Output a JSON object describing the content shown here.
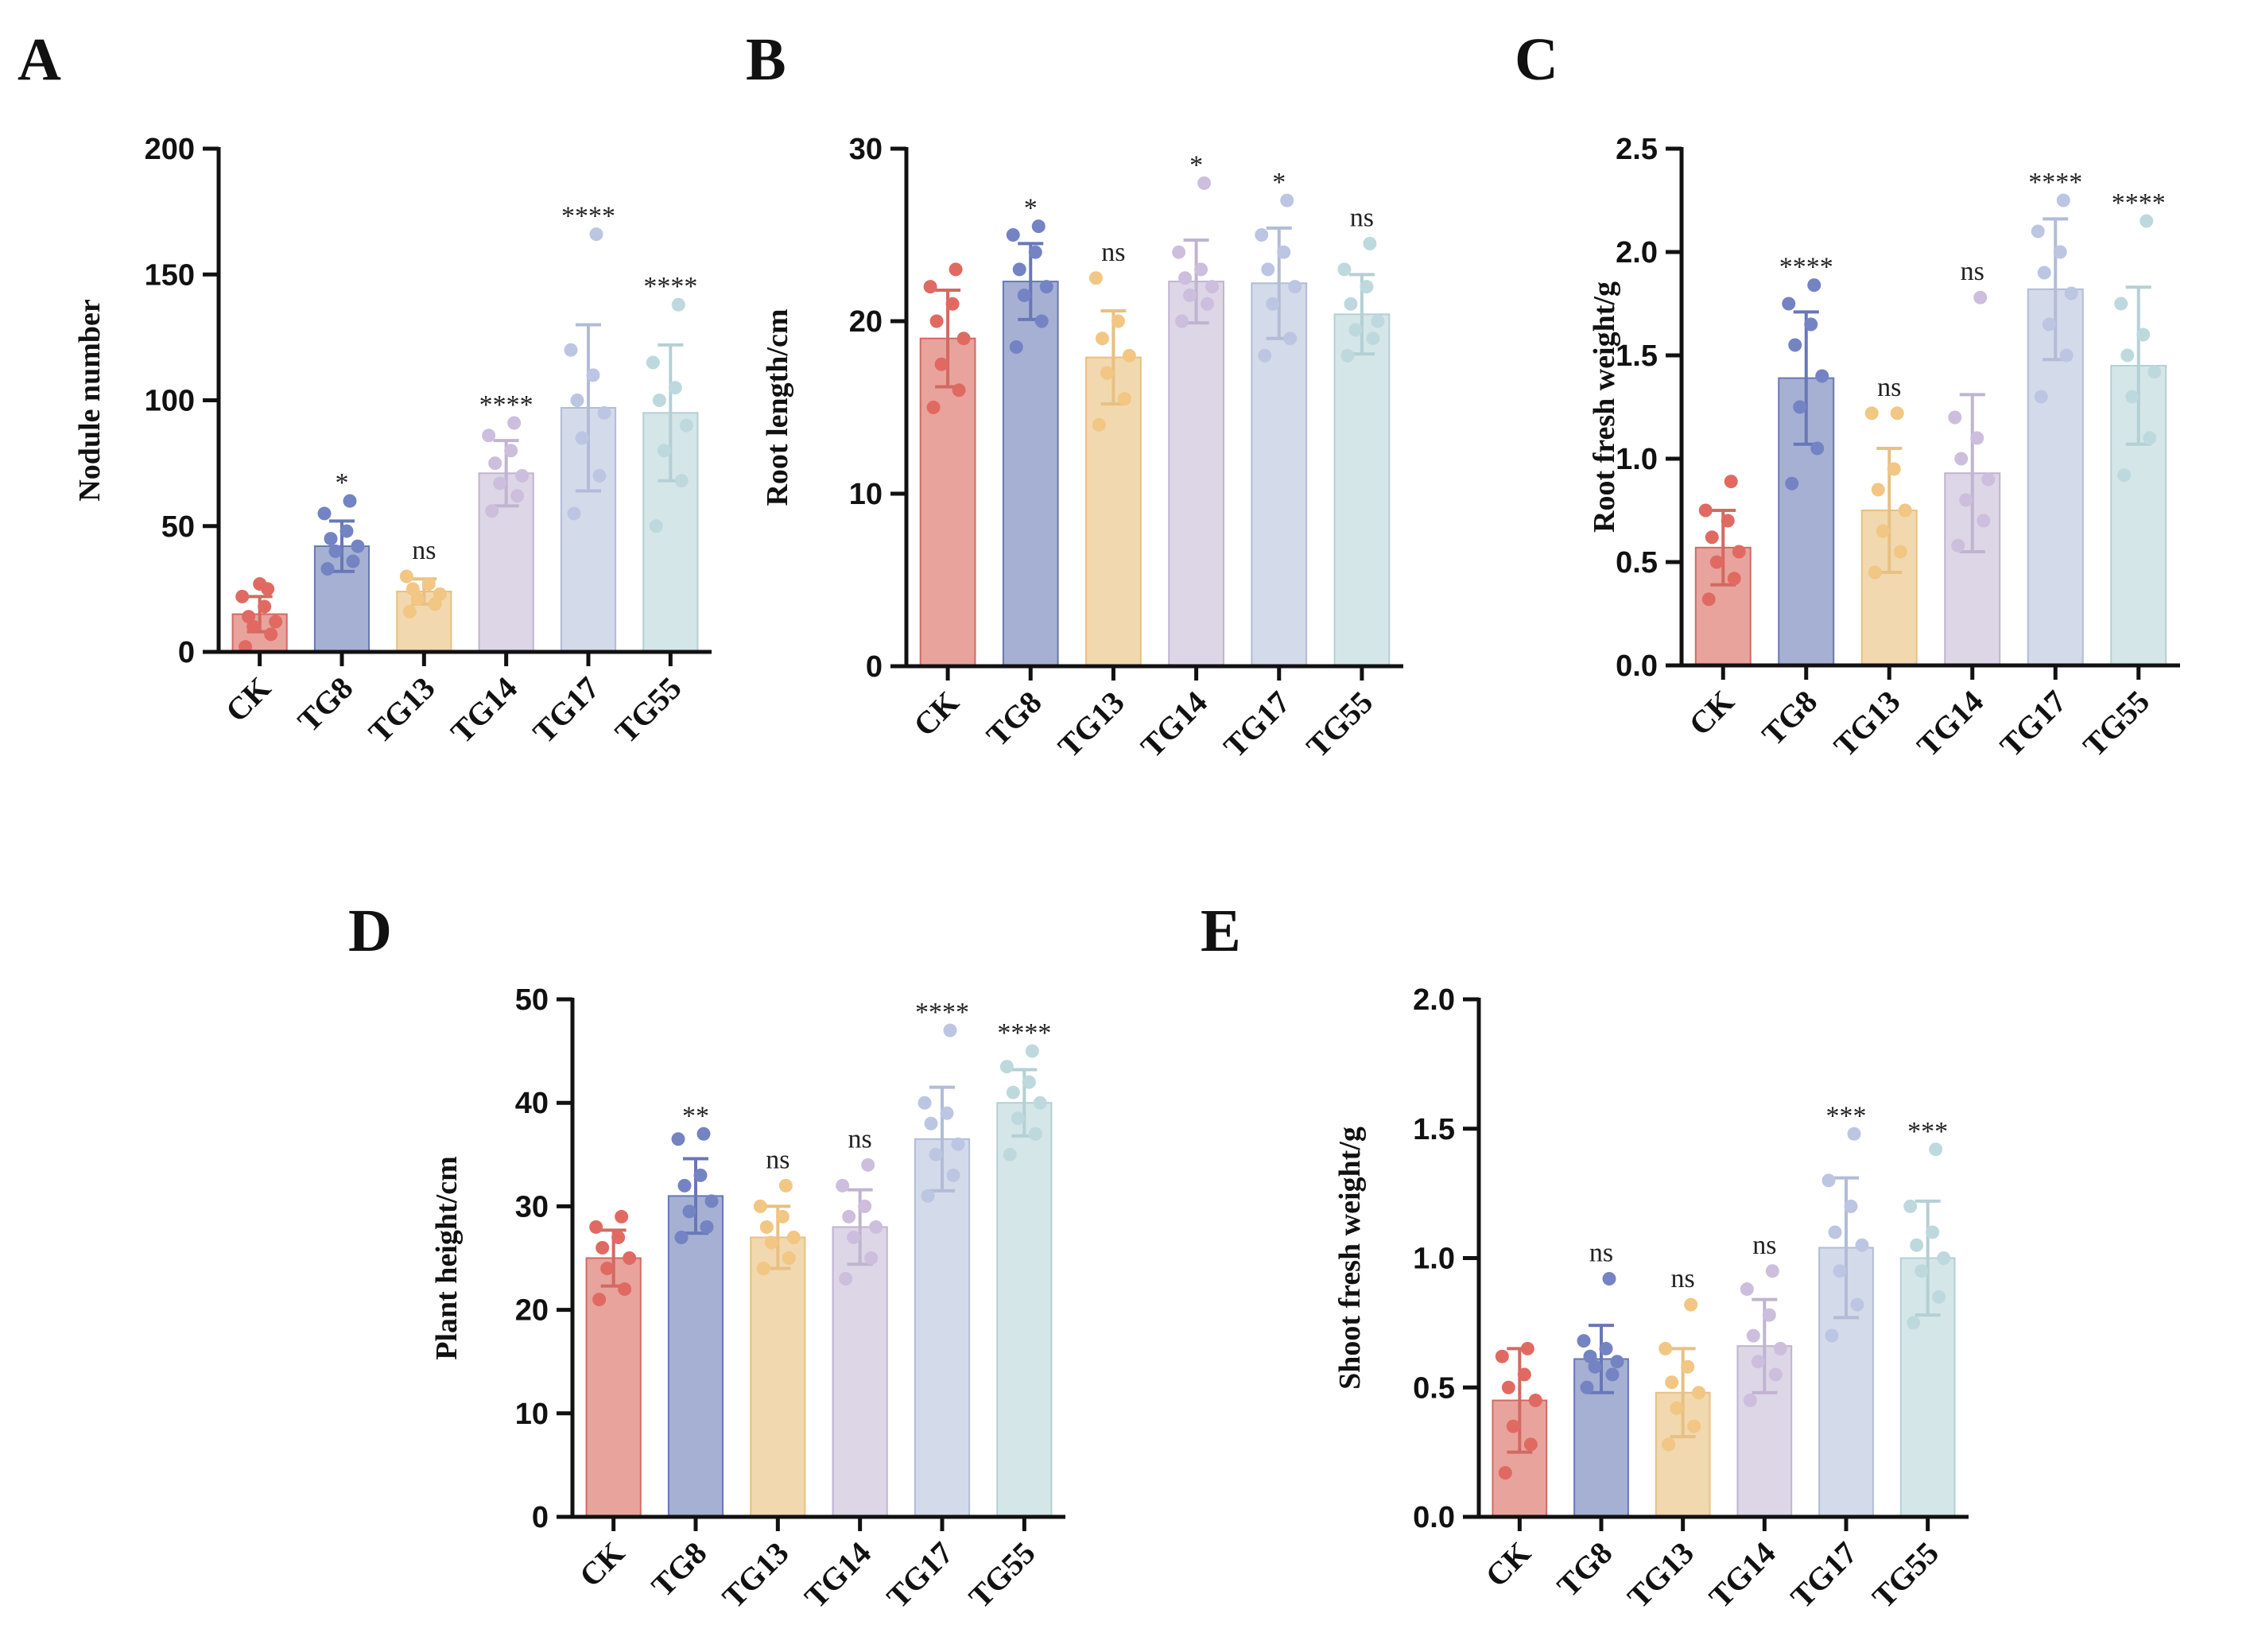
{
  "figure": {
    "categories": [
      "CK",
      "TG8",
      "TG13",
      "TG14",
      "TG17",
      "TG55"
    ]
  },
  "colors": {
    "bars": [
      "#e8a39d",
      "#a5b0d3",
      "#f2d8ae",
      "#ddd6e6",
      "#d3daea",
      "#d4e6e8"
    ],
    "points": [
      "#e06a62",
      "#7483c3",
      "#f2c683",
      "#cdbedd",
      "#bcc6e2",
      "#bed9dd"
    ],
    "errors": [
      "#d26a62",
      "#6877b7",
      "#e7c084",
      "#c0b4d1",
      "#b2bcd8",
      "#b4d0d4"
    ]
  },
  "chart_data": [
    {
      "type": "bar",
      "panel": "A",
      "ylabel": "Nodule number",
      "ylim": [
        0,
        200
      ],
      "yticks": [
        "0",
        "50",
        "100",
        "150",
        "200"
      ],
      "categories": [
        "CK",
        "TG8",
        "TG13",
        "TG14",
        "TG17",
        "TG55"
      ],
      "values": [
        15,
        42,
        24,
        71,
        97,
        95
      ],
      "sd": [
        7,
        10,
        5,
        13,
        33,
        27
      ],
      "points": [
        [
          2,
          7,
          10,
          12,
          14,
          18,
          22,
          25,
          27
        ],
        [
          33,
          36,
          40,
          42,
          45,
          48,
          55,
          60
        ],
        [
          16,
          19,
          21,
          23,
          25,
          27,
          30
        ],
        [
          56,
          62,
          67,
          70,
          75,
          80,
          86,
          91
        ],
        [
          55,
          70,
          85,
          95,
          100,
          110,
          120,
          166
        ],
        [
          50,
          68,
          80,
          90,
          100,
          105,
          115,
          138
        ]
      ],
      "significance": [
        "",
        "*",
        "ns",
        "****",
        "****",
        "****"
      ]
    },
    {
      "type": "bar",
      "panel": "B",
      "ylabel": "Root length/cm",
      "ylim": [
        0,
        30
      ],
      "yticks": [
        "0",
        "10",
        "20",
        "30"
      ],
      "categories": [
        "CK",
        "TG8",
        "TG13",
        "TG14",
        "TG17",
        "TG55"
      ],
      "values": [
        19,
        22.3,
        17.9,
        22.3,
        22.2,
        20.4
      ],
      "sd": [
        2.8,
        2.2,
        2.7,
        2.4,
        3.2,
        2.3
      ],
      "points": [
        [
          15,
          16,
          17.5,
          19,
          20,
          21,
          22,
          23
        ],
        [
          18.5,
          20,
          21.5,
          22,
          23,
          24,
          25,
          25.5
        ],
        [
          14,
          15.5,
          17,
          18,
          19,
          20,
          22.5
        ],
        [
          20,
          21,
          21.5,
          22,
          22.5,
          23,
          24,
          28
        ],
        [
          18,
          19,
          21,
          22,
          23,
          24,
          25,
          27
        ],
        [
          18,
          19,
          19.5,
          20,
          21,
          22,
          23,
          24.5
        ]
      ],
      "significance": [
        "",
        "*",
        "ns",
        "*",
        "*",
        "ns"
      ]
    },
    {
      "type": "bar",
      "panel": "C",
      "ylabel": "Root fresh weight/g",
      "ylim": [
        0,
        2.5
      ],
      "yticks": [
        "0.0",
        "0.5",
        "1.0",
        "1.5",
        "2.0",
        "2.5"
      ],
      "categories": [
        "CK",
        "TG8",
        "TG13",
        "TG14",
        "TG17",
        "TG55"
      ],
      "values": [
        0.57,
        1.39,
        0.75,
        0.93,
        1.82,
        1.45
      ],
      "sd": [
        0.18,
        0.32,
        0.3,
        0.38,
        0.34,
        0.38
      ],
      "points": [
        [
          0.32,
          0.42,
          0.5,
          0.55,
          0.62,
          0.7,
          0.75,
          0.89
        ],
        [
          0.88,
          1.05,
          1.25,
          1.4,
          1.55,
          1.65,
          1.75,
          1.84
        ],
        [
          0.45,
          0.55,
          0.65,
          0.75,
          0.85,
          0.95,
          1.22,
          1.22
        ],
        [
          0.58,
          0.7,
          0.8,
          0.9,
          1.0,
          1.1,
          1.2,
          1.78
        ],
        [
          1.3,
          1.5,
          1.65,
          1.8,
          1.9,
          2.0,
          2.1,
          2.25
        ],
        [
          0.92,
          1.1,
          1.3,
          1.42,
          1.5,
          1.6,
          1.75,
          2.15
        ]
      ],
      "significance": [
        "",
        "****",
        "ns",
        "ns",
        "****",
        "****"
      ]
    },
    {
      "type": "bar",
      "panel": "D",
      "ylabel": "Plant height/cm",
      "ylim": [
        0,
        50
      ],
      "yticks": [
        "0",
        "10",
        "20",
        "30",
        "40",
        "50"
      ],
      "categories": [
        "CK",
        "TG8",
        "TG13",
        "TG14",
        "TG17",
        "TG55"
      ],
      "values": [
        25,
        31,
        27,
        28,
        36.5,
        40
      ],
      "sd": [
        2.7,
        3.6,
        3,
        3.6,
        5,
        3.2
      ],
      "points": [
        [
          21,
          22,
          24,
          25,
          26,
          27,
          28,
          29
        ],
        [
          27,
          28,
          29.5,
          30.5,
          32,
          33,
          36.5,
          37
        ],
        [
          24,
          25,
          26.5,
          27,
          28,
          29,
          30,
          32
        ],
        [
          23,
          25,
          27,
          28,
          29,
          30,
          32,
          34
        ],
        [
          31,
          33,
          35,
          36,
          38,
          39,
          40,
          47
        ],
        [
          35,
          37,
          38.5,
          40,
          41,
          42,
          43.5,
          45
        ]
      ],
      "significance": [
        "",
        "**",
        "ns",
        "ns",
        "****",
        "****"
      ]
    },
    {
      "type": "bar",
      "panel": "E",
      "ylabel": "Shoot fresh weight/g",
      "ylim": [
        0,
        2.0
      ],
      "yticks": [
        "0.0",
        "0.5",
        "1.0",
        "1.5",
        "2.0"
      ],
      "categories": [
        "CK",
        "TG8",
        "TG13",
        "TG14",
        "TG17",
        "TG55"
      ],
      "values": [
        0.45,
        0.61,
        0.48,
        0.66,
        1.04,
        1.0
      ],
      "sd": [
        0.2,
        0.13,
        0.17,
        0.18,
        0.27,
        0.22
      ],
      "points": [
        [
          0.17,
          0.28,
          0.35,
          0.45,
          0.5,
          0.55,
          0.62,
          0.65
        ],
        [
          0.5,
          0.55,
          0.58,
          0.6,
          0.62,
          0.65,
          0.68,
          0.92
        ],
        [
          0.28,
          0.35,
          0.42,
          0.48,
          0.52,
          0.58,
          0.65,
          0.82
        ],
        [
          0.45,
          0.55,
          0.6,
          0.65,
          0.7,
          0.78,
          0.88,
          0.95
        ],
        [
          0.7,
          0.82,
          0.95,
          1.05,
          1.1,
          1.2,
          1.3,
          1.48
        ],
        [
          0.75,
          0.85,
          0.95,
          1.0,
          1.05,
          1.1,
          1.2,
          1.42
        ]
      ],
      "significance": [
        "",
        "ns",
        "ns",
        "ns",
        "***",
        "***"
      ]
    }
  ]
}
